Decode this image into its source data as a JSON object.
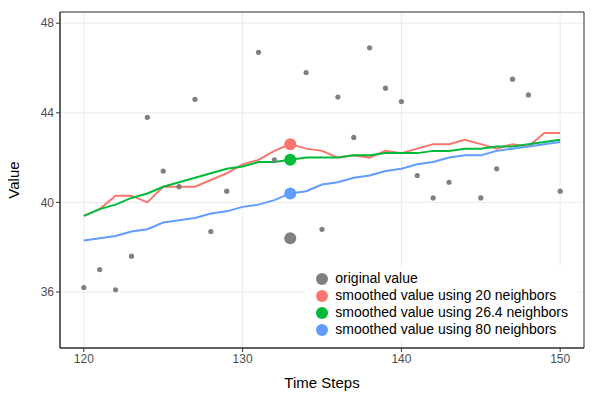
{
  "chart_data": {
    "type": "line",
    "x_label": "Time Steps",
    "y_label": "Value",
    "x": [
      120,
      121,
      122,
      123,
      124,
      125,
      126,
      127,
      128,
      129,
      130,
      131,
      132,
      133,
      134,
      135,
      136,
      137,
      138,
      139,
      140,
      141,
      142,
      143,
      144,
      145,
      146,
      147,
      148,
      149,
      150
    ],
    "series": [
      {
        "name": "original value",
        "type": "scatter",
        "color": "#808080",
        "values": [
          36.2,
          37.0,
          36.1,
          37.6,
          43.8,
          41.4,
          40.7,
          44.6,
          38.7,
          40.5,
          null,
          46.7,
          41.9,
          38.4,
          45.8,
          38.8,
          44.7,
          42.9,
          46.9,
          45.1,
          44.5,
          41.2,
          40.2,
          40.9,
          null,
          40.2,
          41.5,
          45.5,
          44.8,
          null,
          40.5
        ]
      },
      {
        "name": "smoothed value using 20 neighbors",
        "type": "line",
        "color": "#f8766d",
        "values": [
          39.4,
          39.7,
          40.3,
          40.3,
          40.0,
          40.7,
          40.7,
          40.7,
          41.0,
          41.3,
          41.7,
          41.9,
          42.3,
          42.6,
          42.4,
          42.3,
          42.0,
          42.1,
          42.0,
          42.3,
          42.2,
          42.4,
          42.6,
          42.6,
          42.8,
          42.6,
          42.4,
          42.6,
          42.5,
          43.1,
          43.1
        ]
      },
      {
        "name": "smoothed value using 26.4 neighbors",
        "type": "line",
        "color": "#00ba38",
        "values": [
          39.4,
          39.7,
          39.9,
          40.2,
          40.4,
          40.7,
          40.9,
          41.1,
          41.3,
          41.5,
          41.6,
          41.8,
          41.8,
          41.9,
          42.0,
          42.0,
          42.0,
          42.1,
          42.1,
          42.2,
          42.2,
          42.2,
          42.3,
          42.3,
          42.4,
          42.4,
          42.5,
          42.5,
          42.6,
          42.7,
          42.8
        ]
      },
      {
        "name": "smoothed value using 80 neighbors",
        "type": "line",
        "color": "#619cff",
        "values": [
          38.3,
          38.4,
          38.5,
          38.7,
          38.8,
          39.1,
          39.2,
          39.3,
          39.5,
          39.6,
          39.8,
          39.9,
          40.1,
          40.4,
          40.5,
          40.8,
          40.9,
          41.1,
          41.2,
          41.4,
          41.5,
          41.7,
          41.8,
          42.0,
          42.1,
          42.1,
          42.3,
          42.4,
          42.5,
          42.6,
          42.7
        ]
      }
    ],
    "highlight_x": 133,
    "xlim": [
      118.5,
      151.5
    ],
    "xticks": [
      120,
      130,
      140,
      150
    ],
    "ylim": [
      33.5,
      48.5
    ],
    "yticks": [
      36,
      40,
      44,
      48
    ],
    "grid": true,
    "legend": "bottom right"
  }
}
